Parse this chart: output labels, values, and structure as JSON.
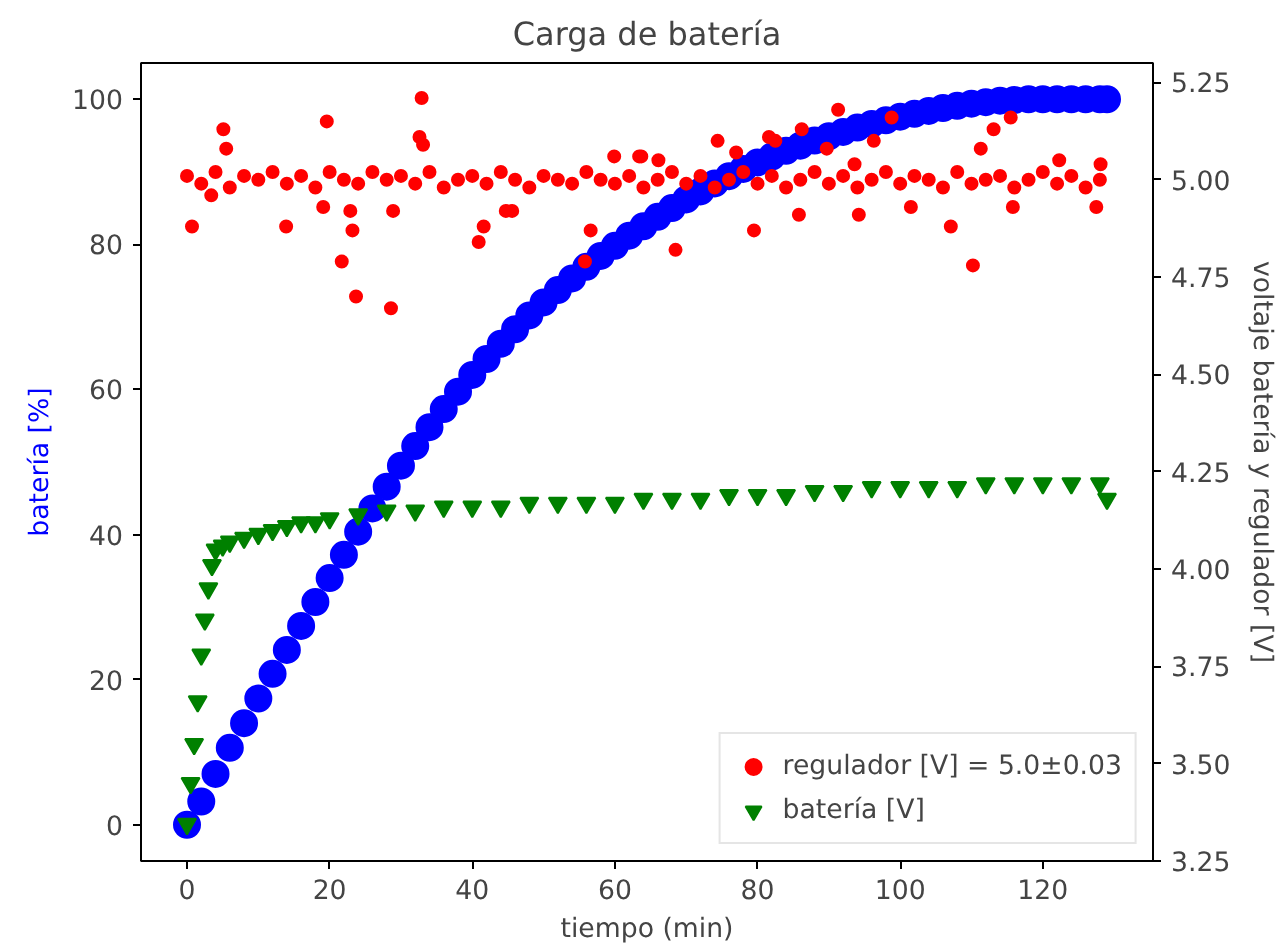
{
  "chart_data": {
    "type": "scatter",
    "title": "Carga de batería",
    "xlabel": "tiempo (min)",
    "ylabel": "batería [%]",
    "y2label": "voltaje batería y regulador [V]",
    "xlim": [
      -6.45,
      135.45
    ],
    "ylim": [
      -5,
      105
    ],
    "y2lim": [
      3.25,
      5.3
    ],
    "xticks": [
      0,
      20,
      40,
      60,
      80,
      100,
      120
    ],
    "yticks": [
      0,
      20,
      40,
      60,
      80,
      100
    ],
    "y2ticks": [
      {
        "value": 3.25,
        "label": "3.25"
      },
      {
        "value": 3.5,
        "label": "3.50"
      },
      {
        "value": 3.75,
        "label": "3.75"
      },
      {
        "value": 4.0,
        "label": "4.00"
      },
      {
        "value": 4.25,
        "label": "4.25"
      },
      {
        "value": 4.5,
        "label": "4.50"
      },
      {
        "value": 4.75,
        "label": "4.75"
      },
      {
        "value": 5.0,
        "label": "5.00"
      },
      {
        "value": 5.25,
        "label": "5.25"
      }
    ],
    "grid": false,
    "legend": "bottom right",
    "series": [
      {
        "color": "#0000ff",
        "marker": "circle",
        "x": [
          0,
          2,
          4,
          6,
          8,
          10,
          12,
          14,
          16,
          18,
          20,
          22,
          24,
          26,
          28,
          30,
          32,
          34,
          36,
          38,
          40,
          42,
          44,
          46,
          48,
          50,
          52,
          54,
          56,
          58,
          60,
          62,
          64,
          66,
          68,
          70,
          72,
          74,
          76,
          78,
          80,
          82,
          84,
          86,
          88,
          90,
          92,
          94,
          96,
          98,
          100,
          102,
          104,
          106,
          108,
          110,
          112,
          114,
          116,
          118,
          120,
          122,
          124,
          126,
          128,
          129
        ],
        "values": [
          0,
          3.2,
          7,
          10.6,
          14,
          17.4,
          20.8,
          24.1,
          27.4,
          30.7,
          34,
          37.2,
          40.4,
          43.6,
          46.6,
          49.5,
          52.2,
          54.8,
          57.3,
          59.7,
          62,
          64.2,
          66.3,
          68.3,
          70.2,
          72,
          73.7,
          75.3,
          76.9,
          78.4,
          79.8,
          81.2,
          82.5,
          83.8,
          85,
          86.2,
          87.3,
          88.4,
          89.4,
          90.4,
          91.3,
          92.1,
          92.9,
          93.6,
          94.3,
          94.9,
          95.5,
          96.1,
          96.6,
          97.1,
          97.6,
          98,
          98.4,
          98.8,
          99.1,
          99.4,
          99.6,
          99.8,
          99.9,
          100,
          100,
          100,
          100,
          100,
          100,
          100
        ]
      },
      {
        "name": "regulador [V] = 5.0±0.03",
        "color": "#ff0000",
        "marker": "circle",
        "axis": "y2",
        "x": [
          0,
          0.7,
          2,
          3.4,
          4,
          5.1,
          5.5,
          6,
          8,
          10,
          12,
          13.9,
          14,
          16,
          18,
          19.1,
          19.6,
          20,
          21.7,
          22,
          22.9,
          23.2,
          23.7,
          24,
          26,
          28,
          28.6,
          28.9,
          30,
          32,
          32.6,
          32.9,
          33.1,
          34,
          36,
          38,
          40,
          40.9,
          41.6,
          42,
          44,
          44.7,
          45.6,
          46,
          48,
          50,
          52,
          54,
          55.8,
          56,
          56.6,
          58,
          59.9,
          60,
          62,
          63.4,
          63.7,
          64,
          66,
          66.1,
          68,
          68.5,
          70,
          72,
          74,
          74.4,
          76,
          77,
          78,
          79.5,
          80,
          81.6,
          82,
          82.5,
          84,
          85.8,
          86,
          86.2,
          88,
          89.7,
          90,
          91.3,
          92,
          93.6,
          94,
          94.2,
          96,
          96.3,
          98,
          98.8,
          100,
          101.5,
          102,
          104,
          106,
          107.1,
          108,
          110,
          110.2,
          111.3,
          112,
          113.1,
          114,
          115.5,
          115.8,
          116,
          118,
          120,
          122,
          122.3,
          124,
          126,
          127.5,
          128,
          128.1
        ],
        "values": [
          5.01,
          4.88,
          4.99,
          4.96,
          5.02,
          5.13,
          5.08,
          4.98,
          5.01,
          5.0,
          5.02,
          4.88,
          4.99,
          5.01,
          4.98,
          4.93,
          5.15,
          5.02,
          4.79,
          5.0,
          4.92,
          4.87,
          4.7,
          4.99,
          5.02,
          5.0,
          4.67,
          4.92,
          5.01,
          4.99,
          5.11,
          5.21,
          5.09,
          5.02,
          4.98,
          5.0,
          5.01,
          4.84,
          4.88,
          4.99,
          5.02,
          4.92,
          4.92,
          5.0,
          4.98,
          5.01,
          5.0,
          4.99,
          4.79,
          5.02,
          4.87,
          5.0,
          5.06,
          4.99,
          5.01,
          5.06,
          5.06,
          4.98,
          5.0,
          5.05,
          5.02,
          4.82,
          4.99,
          5.01,
          4.98,
          5.1,
          5.0,
          5.07,
          5.02,
          4.87,
          4.99,
          5.11,
          5.01,
          5.1,
          4.98,
          4.91,
          5.0,
          5.13,
          5.02,
          5.08,
          4.99,
          5.18,
          5.01,
          5.04,
          4.98,
          4.91,
          5.0,
          5.1,
          5.02,
          5.16,
          4.99,
          4.93,
          5.01,
          5.0,
          4.98,
          4.88,
          5.02,
          4.99,
          4.78,
          5.08,
          5.0,
          5.13,
          5.01,
          5.16,
          4.93,
          4.98,
          5.0,
          5.02,
          4.99,
          5.05,
          5.01,
          4.98,
          4.93,
          5.0,
          5.04
        ]
      },
      {
        "name": "batería [V]",
        "color": "#008000",
        "marker": "triangle",
        "axis": "y2",
        "x": [
          0,
          0.5,
          1,
          1.5,
          2,
          2.5,
          3,
          3.5,
          4,
          5,
          6,
          8,
          10,
          12,
          14,
          16,
          18,
          20,
          24,
          28,
          32,
          36,
          40,
          44,
          48,
          52,
          56,
          60,
          64,
          68,
          72,
          76,
          80,
          84,
          88,
          92,
          96,
          100,
          104,
          108,
          112,
          116,
          120,
          124,
          128,
          129
        ],
        "values": [
          3.345,
          3.45,
          3.55,
          3.66,
          3.78,
          3.87,
          3.95,
          4.01,
          4.05,
          4.06,
          4.07,
          4.08,
          4.09,
          4.1,
          4.11,
          4.12,
          4.12,
          4.13,
          4.14,
          4.15,
          4.15,
          4.16,
          4.16,
          4.16,
          4.17,
          4.17,
          4.17,
          4.17,
          4.18,
          4.18,
          4.18,
          4.19,
          4.19,
          4.19,
          4.2,
          4.2,
          4.21,
          4.21,
          4.21,
          4.21,
          4.22,
          4.22,
          4.22,
          4.22,
          4.22,
          4.18
        ]
      }
    ]
  }
}
